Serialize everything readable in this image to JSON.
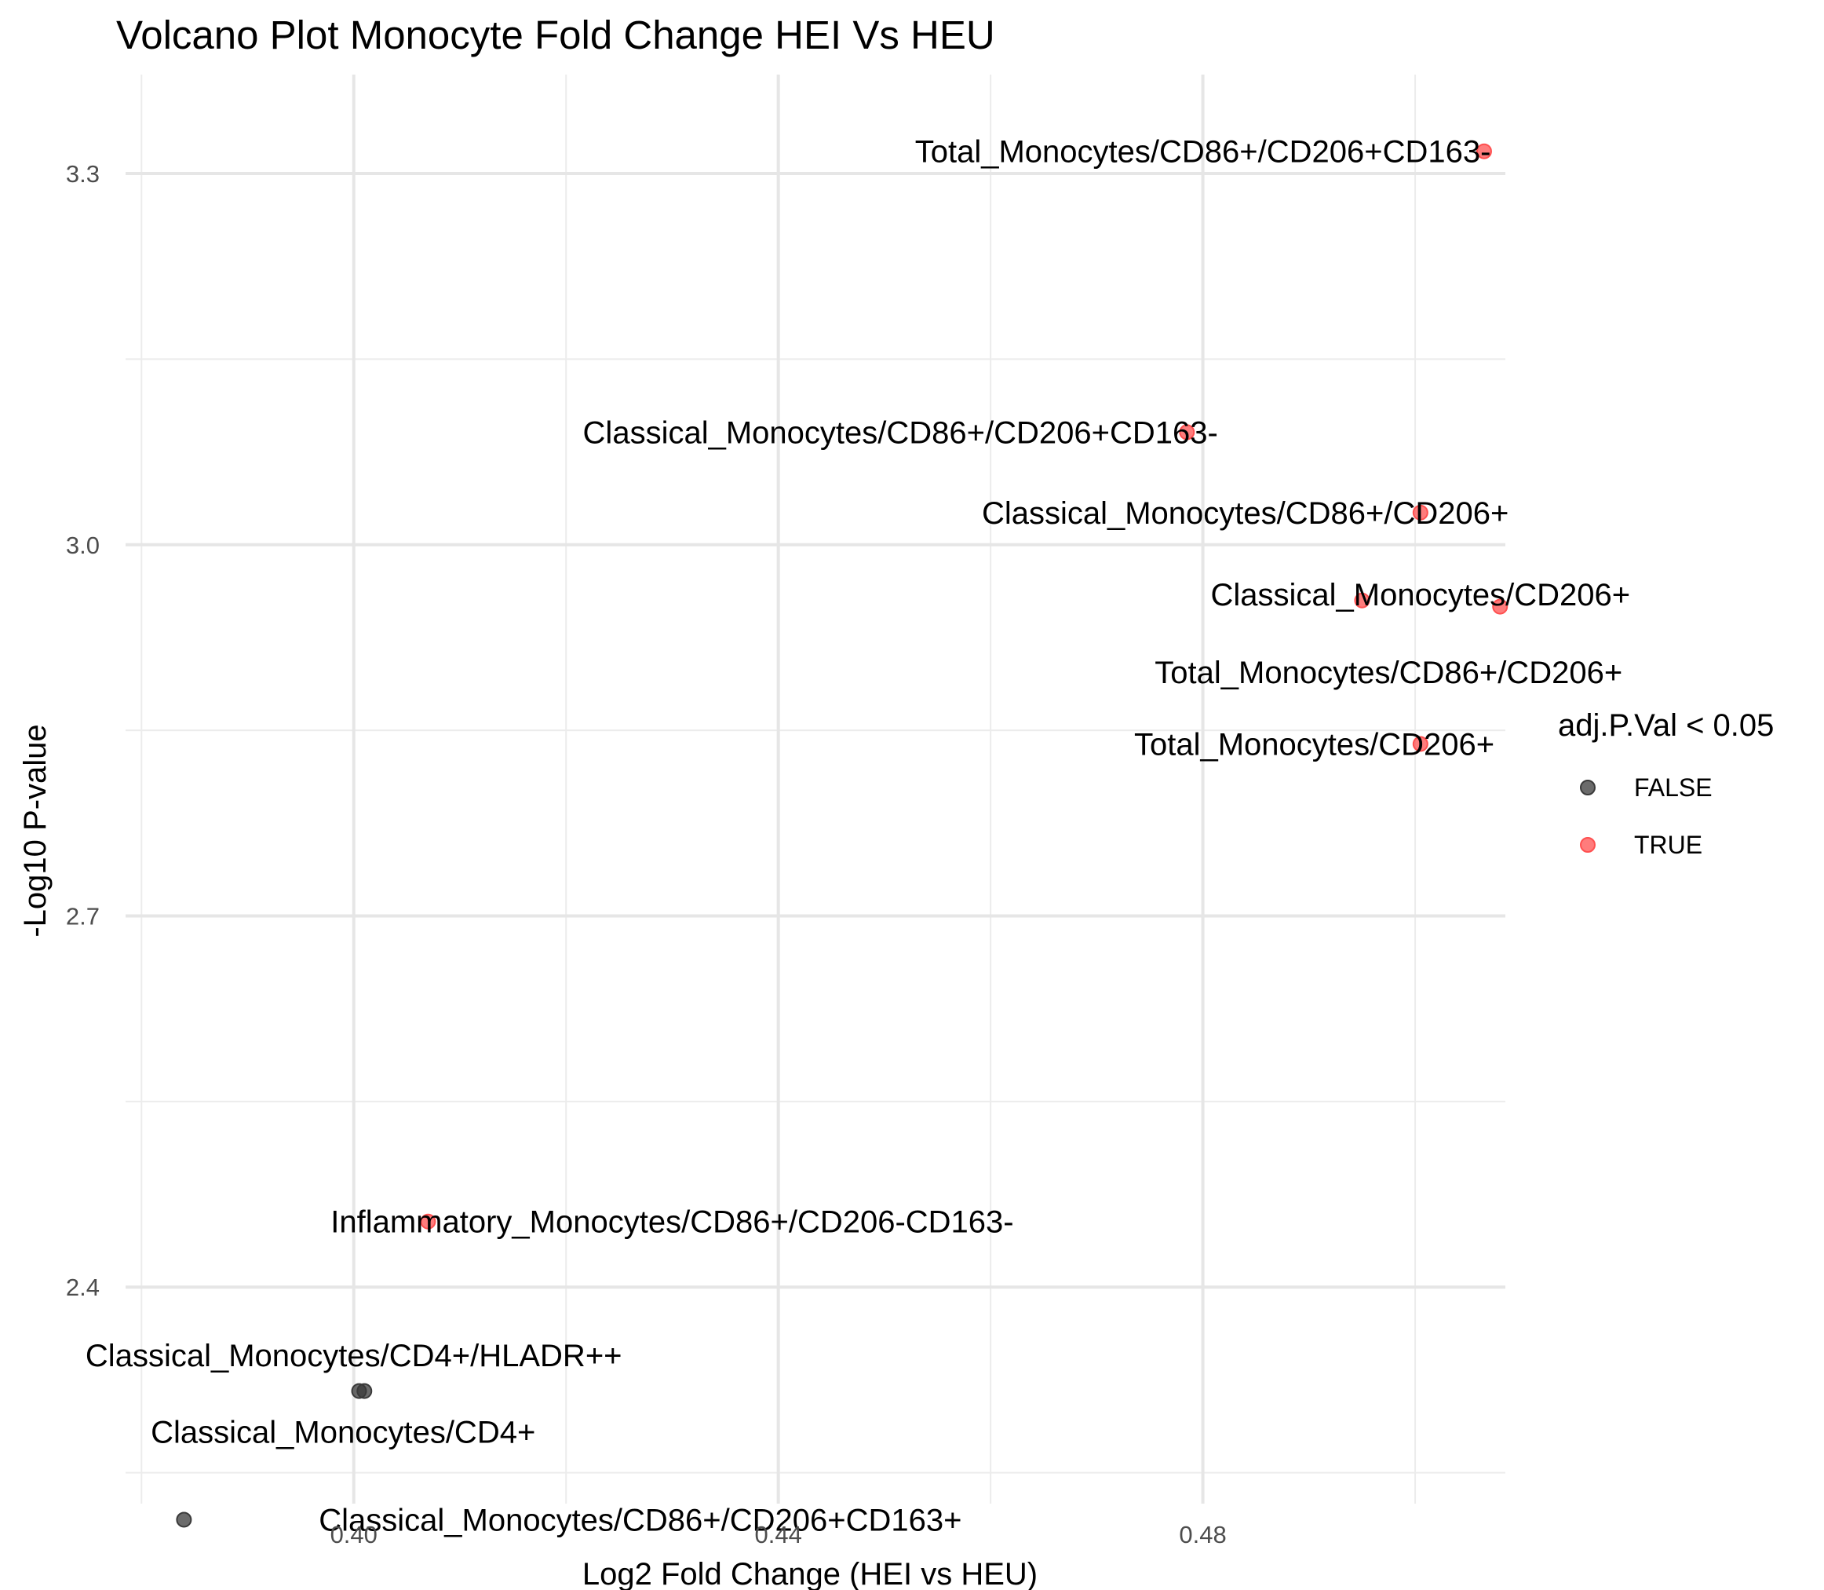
{
  "chart_data": {
    "type": "scatter",
    "title": "Volcano Plot Monocyte Fold Change HEI Vs HEU",
    "xlabel": "Log2 Fold Change (HEI vs HEU)",
    "ylabel": "-Log10 P-value",
    "xlim": [
      0.3785,
      0.5085
    ],
    "ylim": [
      2.225,
      3.38
    ],
    "x_ticks": [
      {
        "value": 0.4,
        "label": "0.40"
      },
      {
        "value": 0.44,
        "label": "0.44"
      },
      {
        "value": 0.48,
        "label": "0.48"
      }
    ],
    "y_ticks": [
      {
        "value": 2.4,
        "label": "2.4"
      },
      {
        "value": 2.7,
        "label": "2.7"
      },
      {
        "value": 3.0,
        "label": "3.0"
      },
      {
        "value": 3.3,
        "label": "3.3"
      }
    ],
    "grid": true,
    "legend": {
      "title": "adj.P.Val < 0.05",
      "placement": "right",
      "entries": [
        {
          "label": "FALSE",
          "color": "#3a3a3a"
        },
        {
          "label": "TRUE",
          "color": "#ff5050"
        }
      ]
    },
    "colors": {
      "false": "#3a3a3a",
      "true": "#ff5050"
    },
    "points": [
      {
        "x": 0.5065,
        "y": 3.318,
        "significant": true
      },
      {
        "x": 0.4785,
        "y": 3.091,
        "significant": true
      },
      {
        "x": 0.5005,
        "y": 3.026,
        "significant": true
      },
      {
        "x": 0.495,
        "y": 2.955,
        "significant": true
      },
      {
        "x": 0.508,
        "y": 2.95,
        "significant": true
      },
      {
        "x": 0.5005,
        "y": 2.839,
        "significant": true
      },
      {
        "x": 0.407,
        "y": 2.453,
        "significant": true
      },
      {
        "x": 0.4005,
        "y": 2.316,
        "significant": false
      },
      {
        "x": 0.401,
        "y": 2.316,
        "significant": false
      },
      {
        "x": 0.384,
        "y": 2.212,
        "significant": false
      }
    ],
    "labels": [
      {
        "text": "Total_Monocytes/CD86+/CD206+CD163-",
        "x": 0.48,
        "y": 3.318
      },
      {
        "text": "Classical_Monocytes/CD86+/CD206+CD163-",
        "x": 0.4515,
        "y": 3.091
      },
      {
        "text": "Classical_Monocytes/CD86+/CD206+",
        "x": 0.484,
        "y": 3.026
      },
      {
        "text": "Classical_Monocytes/CD206+",
        "x": 0.5005,
        "y": 2.96
      },
      {
        "text": "Total_Monocytes/CD86+/CD206+",
        "x": 0.4975,
        "y": 2.897
      },
      {
        "text": "Total_Monocytes/CD206+",
        "x": 0.4905,
        "y": 2.839
      },
      {
        "text": "Inflammatory_Monocytes/CD86+/CD206-CD163-",
        "x": 0.43,
        "y": 2.453
      },
      {
        "text": "Classical_Monocytes/CD4+/HLADR++",
        "x": 0.4,
        "y": 2.345
      },
      {
        "text": "Classical_Monocytes/CD4+",
        "x": 0.399,
        "y": 2.283
      },
      {
        "text": "Classical_Monocytes/CD86+/CD206+CD163+",
        "x": 0.427,
        "y": 2.212
      }
    ]
  }
}
